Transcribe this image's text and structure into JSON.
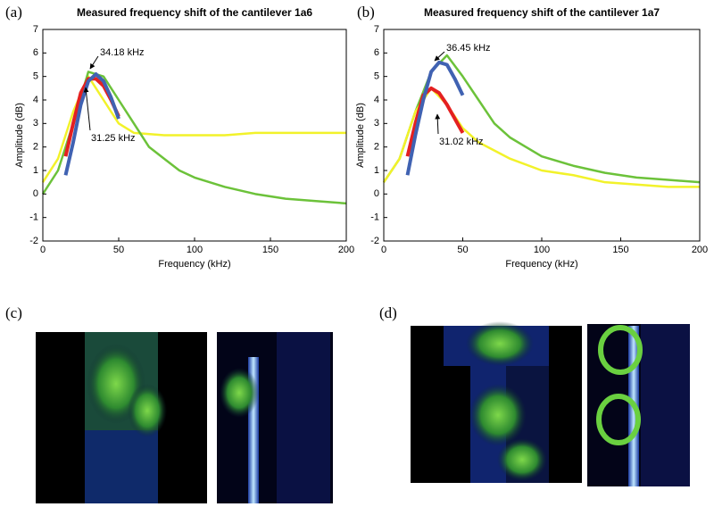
{
  "chart_data": [
    {
      "type": "line",
      "panel_label": "(a)",
      "title": "Measured frequency shift of the cantilever 1a6",
      "x_label": "Frequency (kHz)",
      "y_label": "Amplitude (dB)",
      "xlim": [
        0,
        200
      ],
      "ylim": [
        -2,
        7
      ],
      "xticks": [
        0,
        50,
        100,
        150,
        200
      ],
      "yticks": [
        -2,
        -1,
        0,
        1,
        2,
        3,
        4,
        5,
        6,
        7
      ],
      "series": [
        {
          "color": "#f2f22a",
          "x": [
            0,
            10,
            20,
            30,
            40,
            50,
            60,
            80,
            100,
            120,
            140,
            160,
            180,
            200
          ],
          "values": [
            0.5,
            1.5,
            3.5,
            5,
            4,
            3,
            2.6,
            2.5,
            2.5,
            2.5,
            2.6,
            2.6,
            2.6,
            2.6
          ]
        },
        {
          "color": "#6cc23a",
          "x": [
            0,
            10,
            20,
            30,
            40,
            50,
            60,
            70,
            80,
            90,
            100,
            120,
            140,
            160,
            180,
            200
          ],
          "values": [
            0,
            1,
            3,
            5.2,
            5,
            4,
            3,
            2,
            1.5,
            1,
            0.7,
            0.3,
            0,
            -0.2,
            -0.3,
            -0.4
          ]
        },
        {
          "color": "#e42020",
          "x": [
            15,
            20,
            25,
            30,
            35,
            40,
            45,
            50
          ],
          "values": [
            1.6,
            3,
            4.3,
            4.9,
            4.9,
            4.6,
            4,
            3.3
          ]
        },
        {
          "color": "#4062b2",
          "x": [
            15,
            20,
            25,
            30,
            35,
            40,
            45,
            50
          ],
          "values": [
            0.8,
            2.2,
            3.8,
            4.8,
            5.1,
            4.8,
            4.1,
            3.2
          ]
        }
      ],
      "annotations": [
        "34.18 kHz",
        "31.25 kHz"
      ]
    },
    {
      "type": "line",
      "panel_label": "(b)",
      "title": "Measured frequency shift of the cantilever 1a7",
      "x_label": "Frequency (kHz)",
      "y_label": "Amplitude (dB)",
      "xlim": [
        0,
        200
      ],
      "ylim": [
        -2,
        7
      ],
      "xticks": [
        0,
        50,
        100,
        150,
        200
      ],
      "yticks": [
        -2,
        -1,
        0,
        1,
        2,
        3,
        4,
        5,
        6,
        7
      ],
      "series": [
        {
          "color": "#6cc23a",
          "x": [
            0,
            10,
            20,
            30,
            40,
            50,
            60,
            70,
            80,
            90,
            100,
            120,
            140,
            160,
            180,
            200
          ],
          "values": [
            0.5,
            1.5,
            3.5,
            5.2,
            5.9,
            5,
            4,
            3,
            2.4,
            2,
            1.6,
            1.2,
            0.9,
            0.7,
            0.6,
            0.5
          ]
        },
        {
          "color": "#f2f22a",
          "x": [
            0,
            10,
            20,
            30,
            40,
            50,
            60,
            80,
            100,
            120,
            140,
            160,
            180,
            200
          ],
          "values": [
            0.5,
            1.5,
            3.5,
            4.5,
            3.8,
            2.8,
            2.2,
            1.5,
            1,
            0.8,
            0.5,
            0.4,
            0.3,
            0.3
          ]
        },
        {
          "color": "#e42020",
          "x": [
            15,
            20,
            25,
            30,
            35,
            40,
            45,
            50
          ],
          "values": [
            1.6,
            3,
            4.2,
            4.5,
            4.3,
            3.8,
            3.2,
            2.6
          ]
        },
        {
          "color": "#4062b2",
          "x": [
            15,
            20,
            25,
            30,
            35,
            40,
            45,
            50
          ],
          "values": [
            0.8,
            2.5,
            4,
            5.2,
            5.6,
            5.5,
            4.9,
            4.2
          ]
        }
      ],
      "annotations": [
        "36.45 kHz",
        "31.02 kHz"
      ]
    }
  ],
  "images": [
    {
      "label": "(c)"
    },
    {
      "label": "(d)"
    }
  ]
}
